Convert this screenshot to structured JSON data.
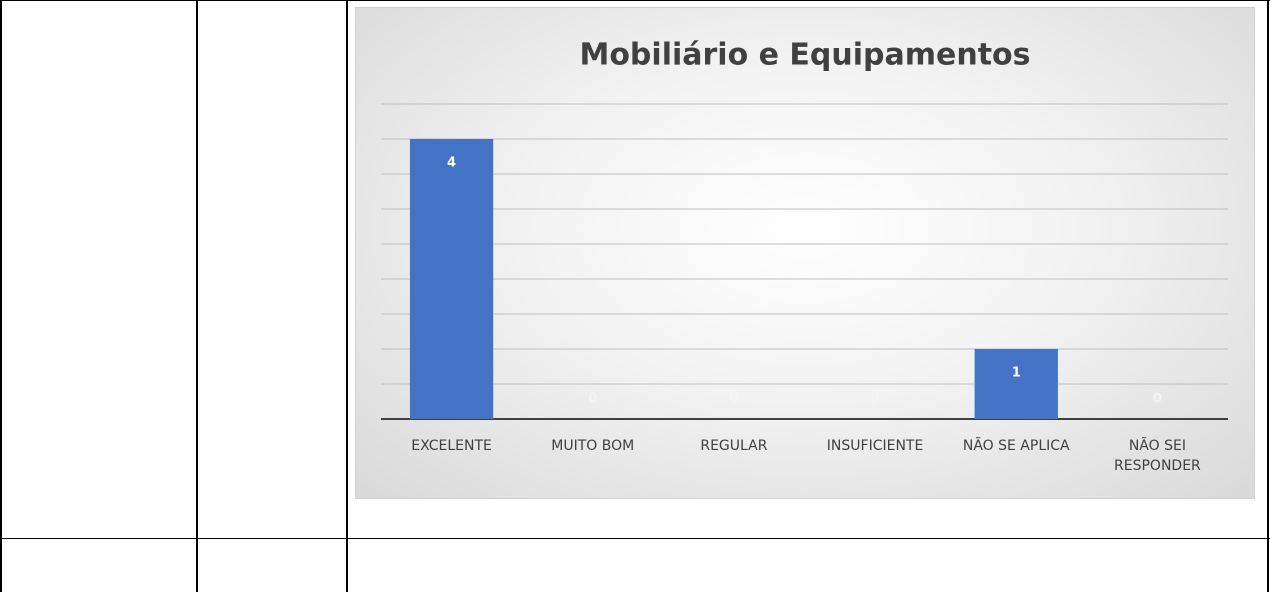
{
  "chart_data": {
    "type": "bar",
    "title": "Mobiliário e Equipamentos",
    "categories": [
      "EXCELENTE",
      "MUITO BOM",
      "REGULAR",
      "INSUFICIENTE",
      "NÃO SE APLICA",
      "NÃO SEI RESPONDER"
    ],
    "values": [
      4,
      0,
      0,
      0,
      1,
      0
    ],
    "color": "#4472c4",
    "ylim": [
      0,
      4.5
    ],
    "yticks": [
      0,
      0.5,
      1,
      1.5,
      2,
      2.5,
      3,
      3.5,
      4,
      4.5
    ],
    "grid": true
  }
}
